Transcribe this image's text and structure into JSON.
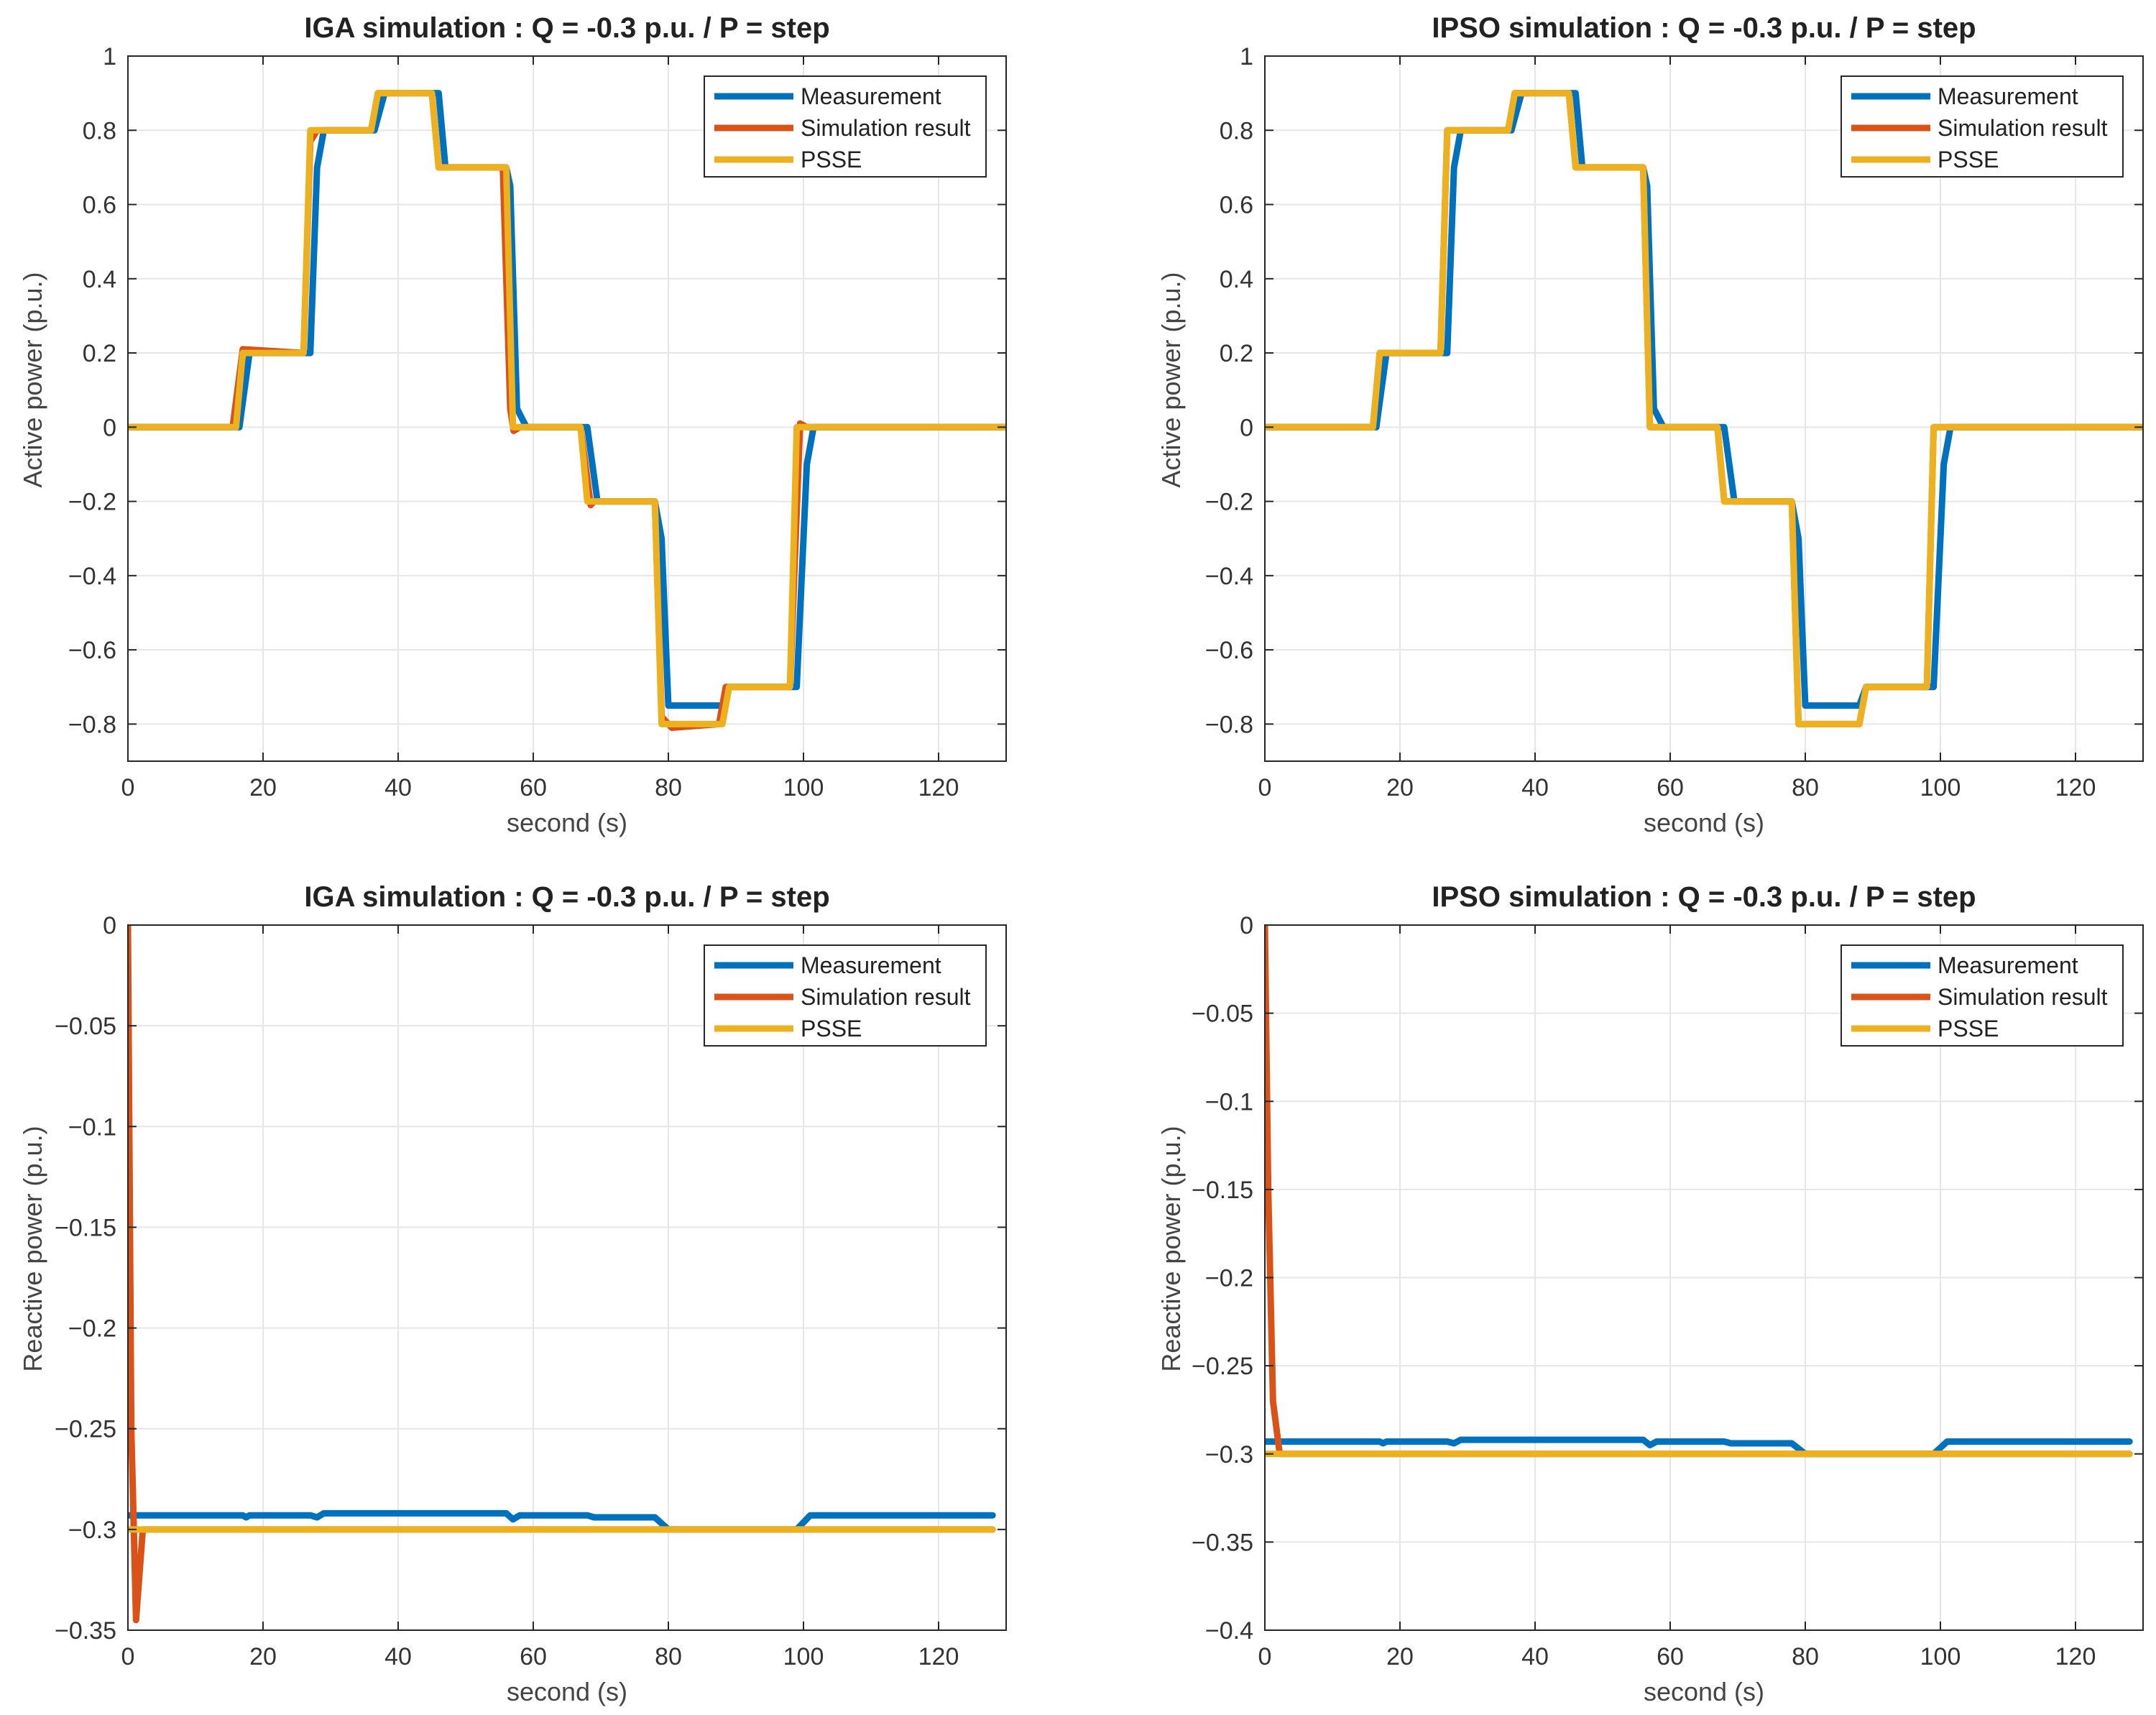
{
  "colors": {
    "measurement": "#0072BD",
    "simulation": "#D95319",
    "psse": "#EDB120",
    "grid": "#e6e6e6",
    "axis": "#262626",
    "legend_border": "#262626"
  },
  "legend_labels": [
    "Measurement",
    "Simulation result",
    "PSSE"
  ],
  "chart_data": [
    {
      "id": "iga-active",
      "type": "line",
      "title": "IGA simulation : Q = -0.3 p.u. / P = step",
      "xlabel": "second (s)",
      "ylabel": "Active power (p.u.)",
      "xlim": [
        0,
        130
      ],
      "ylim": [
        -0.9,
        1
      ],
      "xticks": [
        0,
        20,
        40,
        60,
        80,
        100,
        120
      ],
      "yticks": [
        -0.8,
        -0.6,
        -0.4,
        -0.2,
        0,
        0.2,
        0.4,
        0.6,
        0.8,
        1
      ],
      "ytick_labels": [
        "−0.8",
        "−0.6",
        "−0.4",
        "−0.2",
        "0",
        "0.2",
        "0.4",
        "0.6",
        "0.8",
        "1"
      ],
      "grid": true,
      "legend_position": "top-right",
      "series": [
        {
          "name": "Measurement",
          "color_key": "measurement",
          "x": [
            0,
            16.5,
            18,
            27,
            28,
            29,
            30,
            36.5,
            38,
            46,
            47,
            56,
            56.6,
            57.6,
            59,
            68,
            69.5,
            70,
            78,
            79,
            80,
            88,
            89,
            99,
            100.5,
            101.5,
            130
          ],
          "y": [
            0,
            0,
            0.2,
            0.2,
            0.7,
            0.8,
            0.8,
            0.8,
            0.9,
            0.9,
            0.7,
            0.7,
            0.65,
            0.05,
            0,
            0,
            -0.2,
            -0.2,
            -0.2,
            -0.3,
            -0.75,
            -0.75,
            -0.7,
            -0.7,
            -0.1,
            0,
            0
          ]
        },
        {
          "name": "Simulation result",
          "color_key": "simulation",
          "x": [
            0,
            15.5,
            17,
            26,
            27,
            28,
            29,
            36,
            37,
            45,
            46,
            55.5,
            56.6,
            57.1,
            58,
            67,
            68.5,
            69,
            78,
            79,
            80.5,
            87.5,
            88.5,
            98,
            99.5,
            100.5,
            130
          ],
          "y": [
            0,
            0,
            0.21,
            0.2,
            0.77,
            0.8,
            0.8,
            0.8,
            0.9,
            0.9,
            0.7,
            0.7,
            0.05,
            -0.01,
            0,
            0,
            -0.21,
            -0.2,
            -0.2,
            -0.78,
            -0.81,
            -0.8,
            -0.7,
            -0.7,
            0.01,
            0,
            0
          ]
        },
        {
          "name": "PSSE",
          "color_key": "psse",
          "x": [
            0,
            16,
            17,
            26,
            27,
            36,
            37,
            45,
            46,
            56,
            57,
            67,
            68,
            78,
            79,
            88,
            89,
            98,
            99,
            130
          ],
          "y": [
            0,
            0,
            0.2,
            0.2,
            0.8,
            0.8,
            0.9,
            0.9,
            0.7,
            0.7,
            0,
            0,
            -0.2,
            -0.2,
            -0.8,
            -0.8,
            -0.7,
            -0.7,
            0,
            0
          ]
        }
      ]
    },
    {
      "id": "ipso-active",
      "type": "line",
      "title": "IPSO simulation : Q = -0.3 p.u. / P = step",
      "xlabel": "second (s)",
      "ylabel": "Active power (p.u.)",
      "xlim": [
        0,
        130
      ],
      "ylim": [
        -0.9,
        1
      ],
      "xticks": [
        0,
        20,
        40,
        60,
        80,
        100,
        120
      ],
      "yticks": [
        -0.8,
        -0.6,
        -0.4,
        -0.2,
        0,
        0.2,
        0.4,
        0.6,
        0.8,
        1
      ],
      "ytick_labels": [
        "−0.8",
        "−0.6",
        "−0.4",
        "−0.2",
        "0",
        "0.2",
        "0.4",
        "0.6",
        "0.8",
        "1"
      ],
      "grid": true,
      "legend_position": "top-right",
      "series": [
        {
          "name": "Measurement",
          "color_key": "measurement",
          "x": [
            0,
            16.5,
            18,
            27,
            28,
            29,
            30,
            36.5,
            38,
            46,
            47,
            56,
            56.6,
            57.6,
            59,
            68,
            69.5,
            70,
            78,
            79,
            80,
            88,
            89,
            99,
            100.5,
            101.5,
            130
          ],
          "y": [
            0,
            0,
            0.2,
            0.2,
            0.7,
            0.8,
            0.8,
            0.8,
            0.9,
            0.9,
            0.7,
            0.7,
            0.65,
            0.05,
            0,
            0,
            -0.2,
            -0.2,
            -0.2,
            -0.3,
            -0.75,
            -0.75,
            -0.7,
            -0.7,
            -0.1,
            0,
            0
          ]
        },
        {
          "name": "Simulation result",
          "color_key": "simulation",
          "x": [
            0,
            16,
            17,
            26,
            27,
            36,
            37,
            45,
            46,
            56,
            57,
            67,
            68,
            78,
            79,
            88,
            89,
            98,
            99,
            130
          ],
          "y": [
            0,
            0,
            0.2,
            0.2,
            0.8,
            0.8,
            0.9,
            0.9,
            0.7,
            0.7,
            0,
            0,
            -0.2,
            -0.2,
            -0.8,
            -0.8,
            -0.7,
            -0.7,
            0,
            0
          ]
        },
        {
          "name": "PSSE",
          "color_key": "psse",
          "x": [
            0,
            16,
            17,
            26,
            27,
            36,
            37,
            45,
            46,
            56,
            57,
            67,
            68,
            78,
            79,
            88,
            89,
            98,
            99,
            130
          ],
          "y": [
            0,
            0,
            0.2,
            0.2,
            0.8,
            0.8,
            0.9,
            0.9,
            0.7,
            0.7,
            0,
            0,
            -0.2,
            -0.2,
            -0.8,
            -0.8,
            -0.7,
            -0.7,
            0,
            0
          ]
        }
      ]
    },
    {
      "id": "iga-reactive",
      "type": "line",
      "title": "IGA simulation : Q = -0.3 p.u. / P = step",
      "xlabel": "second (s)",
      "ylabel": "Reactive power (p.u.)",
      "xlim": [
        0,
        130
      ],
      "ylim": [
        -0.35,
        0
      ],
      "xticks": [
        0,
        20,
        40,
        60,
        80,
        100,
        120
      ],
      "yticks": [
        -0.35,
        -0.3,
        -0.25,
        -0.2,
        -0.15,
        -0.1,
        -0.05,
        0
      ],
      "ytick_labels": [
        "−0.35",
        "−0.3",
        "−0.25",
        "−0.2",
        "−0.15",
        "−0.1",
        "−0.05",
        "0"
      ],
      "grid": true,
      "legend_position": "top-right",
      "series": [
        {
          "name": "Measurement",
          "color_key": "measurement",
          "x": [
            0,
            0.5,
            17,
            17.5,
            18,
            27,
            28,
            29,
            56,
            57,
            58,
            68,
            69,
            78,
            80,
            99,
            101,
            128
          ],
          "y": [
            -0.293,
            -0.293,
            -0.293,
            -0.294,
            -0.293,
            -0.293,
            -0.294,
            -0.292,
            -0.292,
            -0.295,
            -0.293,
            -0.293,
            -0.294,
            -0.294,
            -0.3,
            -0.3,
            -0.293,
            -0.293
          ]
        },
        {
          "name": "Simulation result",
          "color_key": "simulation",
          "x": [
            0,
            0.5,
            1.2,
            2.2,
            128
          ],
          "y": [
            0,
            -0.25,
            -0.345,
            -0.3,
            -0.3
          ]
        },
        {
          "name": "PSSE",
          "color_key": "psse",
          "x": [
            0,
            128
          ],
          "y": [
            -0.3,
            -0.3
          ]
        }
      ]
    },
    {
      "id": "ipso-reactive",
      "type": "line",
      "title": "IPSO simulation : Q = -0.3 p.u. / P = step",
      "xlabel": "second (s)",
      "ylabel": "Reactive power (p.u.)",
      "xlim": [
        0,
        130
      ],
      "ylim": [
        -0.4,
        0
      ],
      "xticks": [
        0,
        20,
        40,
        60,
        80,
        100,
        120
      ],
      "yticks": [
        -0.4,
        -0.35,
        -0.3,
        -0.25,
        -0.2,
        -0.15,
        -0.1,
        -0.05,
        0
      ],
      "ytick_labels": [
        "−0.4",
        "−0.35",
        "−0.3",
        "−0.25",
        "−0.2",
        "−0.15",
        "−0.1",
        "−0.05",
        "0"
      ],
      "grid": true,
      "legend_position": "top-right",
      "series": [
        {
          "name": "Measurement",
          "color_key": "measurement",
          "x": [
            0,
            0.5,
            17,
            17.5,
            18,
            27,
            28,
            29,
            56,
            57,
            58,
            68,
            69,
            78,
            80,
            99,
            101,
            128
          ],
          "y": [
            -0.293,
            -0.293,
            -0.293,
            -0.294,
            -0.293,
            -0.293,
            -0.294,
            -0.292,
            -0.292,
            -0.295,
            -0.293,
            -0.293,
            -0.294,
            -0.294,
            -0.3,
            -0.3,
            -0.293,
            -0.293
          ]
        },
        {
          "name": "Simulation result",
          "color_key": "simulation",
          "x": [
            0,
            0.5,
            1.2,
            2.2,
            128
          ],
          "y": [
            0,
            -0.15,
            -0.27,
            -0.3,
            -0.3
          ]
        },
        {
          "name": "PSSE",
          "color_key": "psse",
          "x": [
            0,
            2,
            128
          ],
          "y": [
            -0.3,
            -0.3,
            -0.3
          ]
        }
      ]
    }
  ]
}
